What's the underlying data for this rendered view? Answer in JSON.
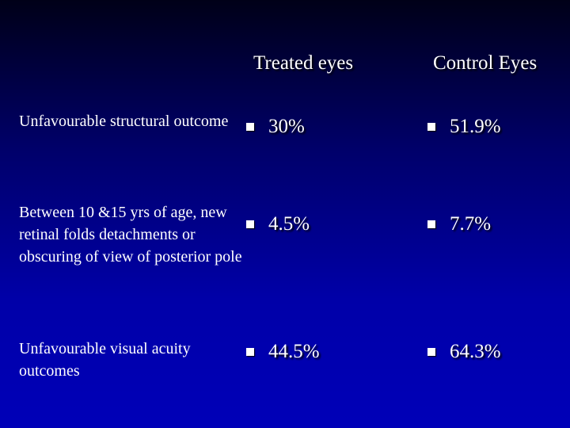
{
  "table": {
    "headers": {
      "treated": "Treated eyes",
      "control": "Control Eyes"
    },
    "rows": [
      {
        "label": "Unfavourable structural outcome",
        "treated": "30%",
        "control": "51.9%"
      },
      {
        "label": "Between 10 &15 yrs of age, new retinal folds detachments or obscuring of view of posterior pole",
        "treated": "4.5%",
        "control": "7.7%"
      },
      {
        "label": "Unfavourable visual acuity outcomes",
        "treated": "44.5%",
        "control": "64.3%"
      }
    ]
  },
  "colors": {
    "background_top": "#000018",
    "background_bottom": "#0000b8",
    "text": "#ffffff"
  },
  "icons": {
    "bullet": "square-bullet-icon"
  }
}
